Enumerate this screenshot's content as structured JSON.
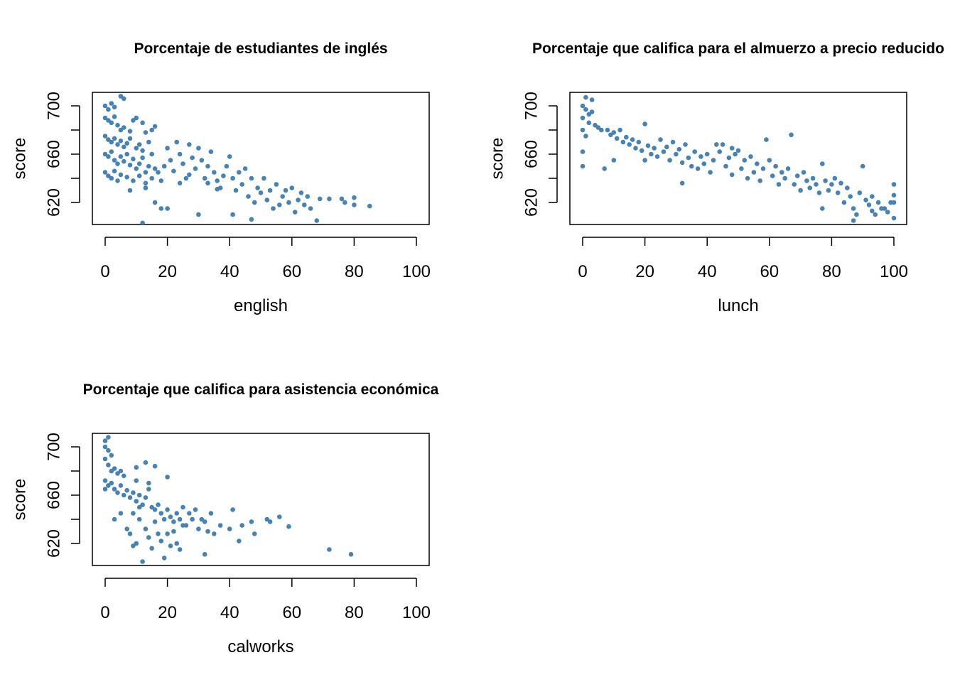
{
  "chart_data": [
    {
      "type": "scatter",
      "title": "Porcentaje de estudiantes de inglés",
      "xlabel": "english",
      "ylabel": "score",
      "xlim": [
        0,
        100
      ],
      "ylim": [
        600,
        710
      ],
      "xticks": [
        "0",
        "20",
        "40",
        "60",
        "80",
        "100"
      ],
      "yticks": [
        "620",
        "660",
        "700"
      ],
      "color": "#4682B4",
      "points": [
        [
          0,
          700
        ],
        [
          1,
          697
        ],
        [
          2,
          702
        ],
        [
          3,
          699
        ],
        [
          5,
          708
        ],
        [
          6,
          706
        ],
        [
          0,
          690
        ],
        [
          1,
          688
        ],
        [
          2,
          686
        ],
        [
          3,
          691
        ],
        [
          4,
          684
        ],
        [
          5,
          680
        ],
        [
          6,
          682
        ],
        [
          8,
          679
        ],
        [
          9,
          688
        ],
        [
          10,
          690
        ],
        [
          12,
          686
        ],
        [
          13,
          678
        ],
        [
          15,
          680
        ],
        [
          16,
          683
        ],
        [
          0,
          675
        ],
        [
          1,
          672
        ],
        [
          2,
          670
        ],
        [
          3,
          673
        ],
        [
          4,
          668
        ],
        [
          5,
          671
        ],
        [
          6,
          666
        ],
        [
          7,
          669
        ],
        [
          8,
          673
        ],
        [
          10,
          665
        ],
        [
          11,
          668
        ],
        [
          12,
          663
        ],
        [
          14,
          670
        ],
        [
          0,
          660
        ],
        [
          1,
          658
        ],
        [
          2,
          662
        ],
        [
          3,
          655
        ],
        [
          4,
          652
        ],
        [
          5,
          658
        ],
        [
          6,
          654
        ],
        [
          7,
          660
        ],
        [
          8,
          651
        ],
        [
          9,
          656
        ],
        [
          10,
          648
        ],
        [
          11,
          652
        ],
        [
          12,
          657
        ],
        [
          13,
          645
        ],
        [
          14,
          650
        ],
        [
          15,
          660
        ],
        [
          16,
          648
        ],
        [
          0,
          645
        ],
        [
          1,
          642
        ],
        [
          2,
          640
        ],
        [
          3,
          646
        ],
        [
          4,
          638
        ],
        [
          5,
          643
        ],
        [
          7,
          641
        ],
        [
          9,
          638
        ],
        [
          11,
          642
        ],
        [
          13,
          636
        ],
        [
          15,
          640
        ],
        [
          17,
          645
        ],
        [
          18,
          638
        ],
        [
          19,
          650
        ],
        [
          20,
          665
        ],
        [
          21,
          655
        ],
        [
          22,
          646
        ],
        [
          23,
          670
        ],
        [
          24,
          660
        ],
        [
          25,
          652
        ],
        [
          26,
          640
        ],
        [
          27,
          668
        ],
        [
          28,
          657
        ],
        [
          29,
          648
        ],
        [
          30,
          665
        ],
        [
          31,
          655
        ],
        [
          32,
          640
        ],
        [
          33,
          650
        ],
        [
          34,
          662
        ],
        [
          35,
          645
        ],
        [
          36,
          638
        ],
        [
          37,
          632
        ],
        [
          38,
          642
        ],
        [
          39,
          650
        ],
        [
          40,
          658
        ],
        [
          41,
          640
        ],
        [
          42,
          630
        ],
        [
          43,
          645
        ],
        [
          44,
          635
        ],
        [
          45,
          648
        ],
        [
          46,
          625
        ],
        [
          47,
          640
        ],
        [
          48,
          620
        ],
        [
          49,
          632
        ],
        [
          50,
          628
        ],
        [
          51,
          640
        ],
        [
          52,
          622
        ],
        [
          53,
          630
        ],
        [
          54,
          615
        ],
        [
          55,
          635
        ],
        [
          56,
          618
        ],
        [
          57,
          625
        ],
        [
          58,
          630
        ],
        [
          59,
          620
        ],
        [
          60,
          632
        ],
        [
          61,
          612
        ],
        [
          62,
          622
        ],
        [
          63,
          628
        ],
        [
          64,
          618
        ],
        [
          65,
          625
        ],
        [
          66,
          615
        ],
        [
          68,
          605
        ],
        [
          69,
          623
        ],
        [
          72,
          623
        ],
        [
          76,
          623
        ],
        [
          77,
          620
        ],
        [
          80,
          618
        ],
        [
          80,
          624
        ],
        [
          85,
          617
        ],
        [
          12,
          603
        ],
        [
          18,
          615
        ],
        [
          20,
          615
        ],
        [
          30,
          610
        ],
        [
          41,
          610
        ],
        [
          47,
          606
        ],
        [
          8,
          630
        ],
        [
          13,
          632
        ],
        [
          16,
          620
        ],
        [
          24,
          636
        ],
        [
          27,
          643
        ],
        [
          33,
          636
        ],
        [
          36,
          631
        ]
      ]
    },
    {
      "type": "scatter",
      "title": "Porcentaje que califica para el almuerzo a precio reducido",
      "xlabel": "lunch",
      "ylabel": "score",
      "xlim": [
        0,
        100
      ],
      "ylim": [
        600,
        710
      ],
      "xticks": [
        "0",
        "20",
        "40",
        "60",
        "80",
        "100"
      ],
      "yticks": [
        "620",
        "660",
        "700"
      ],
      "color": "#4682B4",
      "points": [
        [
          0,
          700
        ],
        [
          1,
          697
        ],
        [
          2,
          693
        ],
        [
          3,
          695
        ],
        [
          1,
          707
        ],
        [
          3,
          705
        ],
        [
          0,
          690
        ],
        [
          2,
          686
        ],
        [
          4,
          684
        ],
        [
          5,
          682
        ],
        [
          6,
          680
        ],
        [
          0,
          680
        ],
        [
          1,
          675
        ],
        [
          0,
          662
        ],
        [
          0,
          650
        ],
        [
          8,
          680
        ],
        [
          9,
          676
        ],
        [
          10,
          678
        ],
        [
          11,
          673
        ],
        [
          12,
          680
        ],
        [
          13,
          670
        ],
        [
          14,
          674
        ],
        [
          15,
          668
        ],
        [
          16,
          672
        ],
        [
          17,
          665
        ],
        [
          18,
          670
        ],
        [
          19,
          663
        ],
        [
          20,
          685
        ],
        [
          21,
          667
        ],
        [
          22,
          660
        ],
        [
          23,
          665
        ],
        [
          24,
          658
        ],
        [
          25,
          672
        ],
        [
          26,
          662
        ],
        [
          27,
          666
        ],
        [
          28,
          655
        ],
        [
          29,
          670
        ],
        [
          30,
          660
        ],
        [
          31,
          664
        ],
        [
          32,
          653
        ],
        [
          33,
          668
        ],
        [
          34,
          657
        ],
        [
          35,
          650
        ],
        [
          36,
          662
        ],
        [
          37,
          648
        ],
        [
          38,
          658
        ],
        [
          39,
          652
        ],
        [
          40,
          660
        ],
        [
          41,
          645
        ],
        [
          42,
          655
        ],
        [
          43,
          668
        ],
        [
          44,
          662
        ],
        [
          45,
          668
        ],
        [
          46,
          650
        ],
        [
          47,
          657
        ],
        [
          48,
          643
        ],
        [
          49,
          660
        ],
        [
          50,
          663
        ],
        [
          51,
          648
        ],
        [
          52,
          655
        ],
        [
          53,
          640
        ],
        [
          54,
          658
        ],
        [
          55,
          645
        ],
        [
          56,
          652
        ],
        [
          57,
          638
        ],
        [
          58,
          648
        ],
        [
          59,
          672
        ],
        [
          60,
          655
        ],
        [
          61,
          642
        ],
        [
          62,
          650
        ],
        [
          63,
          635
        ],
        [
          64,
          645
        ],
        [
          65,
          640
        ],
        [
          66,
          648
        ],
        [
          67,
          676
        ],
        [
          68,
          635
        ],
        [
          69,
          642
        ],
        [
          70,
          630
        ],
        [
          71,
          645
        ],
        [
          72,
          638
        ],
        [
          73,
          632
        ],
        [
          74,
          640
        ],
        [
          75,
          635
        ],
        [
          76,
          628
        ],
        [
          77,
          652
        ],
        [
          78,
          638
        ],
        [
          79,
          630
        ],
        [
          80,
          635
        ],
        [
          81,
          640
        ],
        [
          82,
          628
        ],
        [
          83,
          636
        ],
        [
          84,
          620
        ],
        [
          85,
          632
        ],
        [
          86,
          625
        ],
        [
          87,
          615
        ],
        [
          88,
          610
        ],
        [
          89,
          628
        ],
        [
          90,
          650
        ],
        [
          91,
          622
        ],
        [
          92,
          618
        ],
        [
          93,
          625
        ],
        [
          94,
          610
        ],
        [
          95,
          620
        ],
        [
          96,
          615
        ],
        [
          97,
          615
        ],
        [
          98,
          612
        ],
        [
          99,
          620
        ],
        [
          100,
          635
        ],
        [
          100,
          626
        ],
        [
          100,
          620
        ],
        [
          100,
          607
        ],
        [
          87,
          605
        ],
        [
          7,
          648
        ],
        [
          10,
          655
        ],
        [
          20,
          655
        ],
        [
          32,
          636
        ],
        [
          48,
          665
        ],
        [
          77,
          615
        ],
        [
          93,
          613
        ]
      ]
    },
    {
      "type": "scatter",
      "title": "Porcentaje que califica para asistencia económica",
      "xlabel": "calworks",
      "ylabel": "score",
      "xlim": [
        0,
        100
      ],
      "ylim": [
        600,
        710
      ],
      "xticks": [
        "0",
        "20",
        "40",
        "60",
        "80",
        "100"
      ],
      "yticks": [
        "620",
        "660",
        "700"
      ],
      "color": "#4682B4",
      "points": [
        [
          0,
          705
        ],
        [
          1,
          708
        ],
        [
          0,
          700
        ],
        [
          1,
          697
        ],
        [
          2,
          693
        ],
        [
          0,
          690
        ],
        [
          1,
          685
        ],
        [
          2,
          680
        ],
        [
          3,
          682
        ],
        [
          4,
          678
        ],
        [
          5,
          680
        ],
        [
          6,
          676
        ],
        [
          0,
          672
        ],
        [
          0,
          665
        ],
        [
          1,
          668
        ],
        [
          2,
          670
        ],
        [
          3,
          665
        ],
        [
          4,
          662
        ],
        [
          5,
          668
        ],
        [
          6,
          660
        ],
        [
          7,
          664
        ],
        [
          8,
          658
        ],
        [
          9,
          662
        ],
        [
          10,
          655
        ],
        [
          11,
          660
        ],
        [
          12,
          652
        ],
        [
          13,
          658
        ],
        [
          14,
          665
        ],
        [
          15,
          650
        ],
        [
          16,
          648
        ],
        [
          17,
          652
        ],
        [
          18,
          645
        ],
        [
          19,
          640
        ],
        [
          20,
          648
        ],
        [
          21,
          642
        ],
        [
          22,
          638
        ],
        [
          23,
          645
        ],
        [
          24,
          640
        ],
        [
          25,
          650
        ],
        [
          26,
          635
        ],
        [
          27,
          645
        ],
        [
          28,
          640
        ],
        [
          29,
          648
        ],
        [
          30,
          632
        ],
        [
          31,
          640
        ],
        [
          32,
          638
        ],
        [
          33,
          630
        ],
        [
          34,
          645
        ],
        [
          35,
          628
        ],
        [
          37,
          635
        ],
        [
          40,
          632
        ],
        [
          41,
          648
        ],
        [
          43,
          622
        ],
        [
          44,
          635
        ],
        [
          47,
          638
        ],
        [
          48,
          628
        ],
        [
          52,
          640
        ],
        [
          53,
          638
        ],
        [
          56,
          642
        ],
        [
          59,
          634
        ],
        [
          72,
          615
        ],
        [
          79,
          611
        ],
        [
          3,
          640
        ],
        [
          5,
          645
        ],
        [
          7,
          632
        ],
        [
          8,
          628
        ],
        [
          9,
          618
        ],
        [
          10,
          620
        ],
        [
          11,
          640
        ],
        [
          12,
          605
        ],
        [
          13,
          632
        ],
        [
          14,
          625
        ],
        [
          15,
          616
        ],
        [
          16,
          638
        ],
        [
          17,
          628
        ],
        [
          18,
          622
        ],
        [
          19,
          608
        ],
        [
          20,
          628
        ],
        [
          21,
          618
        ],
        [
          22,
          630
        ],
        [
          23,
          620
        ],
        [
          24,
          615
        ],
        [
          25,
          635
        ],
        [
          32,
          611
        ],
        [
          10,
          683
        ],
        [
          13,
          687
        ],
        [
          16,
          684
        ],
        [
          20,
          675
        ],
        [
          10,
          672
        ],
        [
          14,
          670
        ],
        [
          9,
          645
        ],
        [
          11,
          650
        ]
      ]
    }
  ]
}
